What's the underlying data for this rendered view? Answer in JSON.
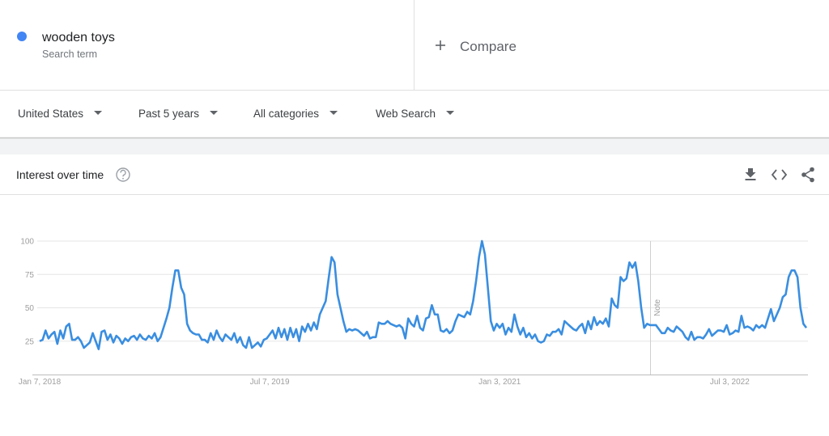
{
  "header": {
    "subtitle": "Search term",
    "compare": "Compare"
  },
  "filters": [
    "United States",
    "Past 5 years",
    "All categories",
    "Web Search"
  ],
  "panel": {
    "title": "Interest over time"
  },
  "chart_data": {
    "type": "line",
    "series": [
      {
        "name": "wooden toys",
        "color": "#3a8ee0",
        "values": [
          25,
          26,
          33,
          27,
          30,
          32,
          23,
          33,
          27,
          36,
          38,
          26,
          26,
          28,
          25,
          20,
          22,
          24,
          31,
          25,
          19,
          32,
          33,
          26,
          30,
          24,
          29,
          27,
          23,
          27,
          25,
          28,
          29,
          26,
          30,
          27,
          26,
          29,
          27,
          31,
          25,
          28,
          35,
          42,
          50,
          65,
          78,
          78,
          65,
          60,
          38,
          33,
          31,
          30,
          30,
          26,
          26,
          24,
          31,
          26,
          33,
          28,
          25,
          30,
          28,
          26,
          31,
          24,
          28,
          22,
          20,
          28,
          20,
          22,
          24,
          21,
          26,
          27,
          30,
          33,
          27,
          35,
          28,
          34,
          26,
          35,
          28,
          34,
          25,
          36,
          32,
          38,
          33,
          39,
          34,
          45,
          50,
          55,
          72,
          88,
          84,
          60,
          50,
          40,
          32,
          34,
          33,
          34,
          33,
          31,
          29,
          32,
          27,
          28,
          28,
          39,
          38,
          38,
          40,
          38,
          37,
          36,
          37,
          35,
          27,
          42,
          38,
          36,
          44,
          35,
          33,
          42,
          43,
          52,
          45,
          45,
          33,
          32,
          34,
          31,
          33,
          40,
          45,
          44,
          43,
          47,
          45,
          55,
          70,
          88,
          100,
          90,
          65,
          40,
          33,
          38,
          35,
          38,
          30,
          35,
          32,
          45,
          36,
          30,
          35,
          28,
          31,
          27,
          30,
          25,
          24,
          25,
          30,
          29,
          32,
          32,
          34,
          30,
          40,
          38,
          36,
          34,
          33,
          36,
          38,
          31,
          40,
          34,
          43,
          37,
          40,
          38,
          42,
          36,
          57,
          52,
          50,
          73,
          70,
          72,
          84,
          80,
          84,
          70,
          50,
          35,
          38,
          37,
          37,
          37,
          34,
          31,
          31,
          35,
          33,
          32,
          36,
          34,
          32,
          28,
          26,
          32,
          26,
          28,
          28,
          27,
          30,
          34,
          29,
          31,
          33,
          33,
          32,
          37,
          30,
          31,
          33,
          32,
          44,
          35,
          36,
          35,
          33,
          37,
          35,
          37,
          35,
          42,
          49,
          40,
          45,
          50,
          58,
          60,
          73,
          78,
          78,
          73,
          50,
          38,
          35
        ]
      }
    ],
    "categories": [
      "Jan 7, 2018",
      null,
      null,
      null,
      null,
      null,
      null,
      null,
      null,
      null,
      null,
      null,
      null,
      null,
      null,
      null,
      null,
      null,
      null,
      null,
      null,
      null,
      null,
      null,
      null,
      null,
      null,
      null,
      null,
      null,
      null,
      null,
      null,
      null,
      null,
      null,
      null,
      null,
      null,
      null,
      null,
      null,
      null,
      null,
      null,
      null,
      null,
      null,
      null,
      null,
      null,
      null,
      null,
      null,
      null,
      null,
      null,
      null,
      null,
      null,
      null,
      null,
      null,
      null,
      null,
      null,
      null,
      null,
      null,
      null,
      null,
      null,
      null,
      null,
      null,
      null,
      null,
      null,
      "Jul 7, 2019",
      null,
      null,
      null,
      null,
      null,
      null,
      null,
      null,
      null,
      null,
      null,
      null,
      null,
      null,
      null,
      null,
      null,
      null,
      null,
      null,
      null,
      null,
      null,
      null,
      null,
      null,
      null,
      null,
      null,
      null,
      null,
      null,
      null,
      null,
      null,
      null,
      null,
      null,
      null,
      null,
      null,
      null,
      null,
      null,
      null,
      null,
      null,
      null,
      null,
      null,
      null,
      null,
      null,
      null,
      null,
      null,
      null,
      null,
      null,
      null,
      null,
      null,
      null,
      null,
      null,
      null,
      null,
      null,
      null,
      null,
      null,
      null,
      null,
      null,
      null,
      null,
      null,
      "Jan 3, 2021",
      null,
      null,
      null,
      null,
      null,
      null,
      null,
      null,
      null,
      null,
      null,
      null,
      null,
      null,
      null,
      null,
      null,
      null,
      null,
      null,
      null,
      null,
      null,
      null,
      null,
      null,
      null,
      null,
      null,
      null,
      null,
      null,
      null,
      null,
      null,
      null,
      null,
      null,
      null,
      null,
      null,
      null,
      null,
      null,
      null,
      null,
      null,
      null,
      null,
      null,
      null,
      null,
      null,
      null,
      null,
      null,
      null,
      null,
      null,
      null,
      null,
      null,
      null,
      null,
      null,
      null,
      null,
      null,
      null,
      null,
      null,
      null,
      null,
      null,
      null,
      null,
      null,
      "Jul 3, 2022",
      null,
      null,
      null,
      null,
      null,
      null,
      null,
      null,
      null,
      null,
      null,
      null,
      null,
      null,
      null,
      null,
      null,
      null,
      null,
      null,
      null,
      null,
      null,
      null,
      null,
      null
    ],
    "ylim": [
      0,
      100
    ],
    "yticks": [
      25,
      50,
      75,
      100
    ],
    "grid": true,
    "annotations": [
      "Note"
    ]
  }
}
